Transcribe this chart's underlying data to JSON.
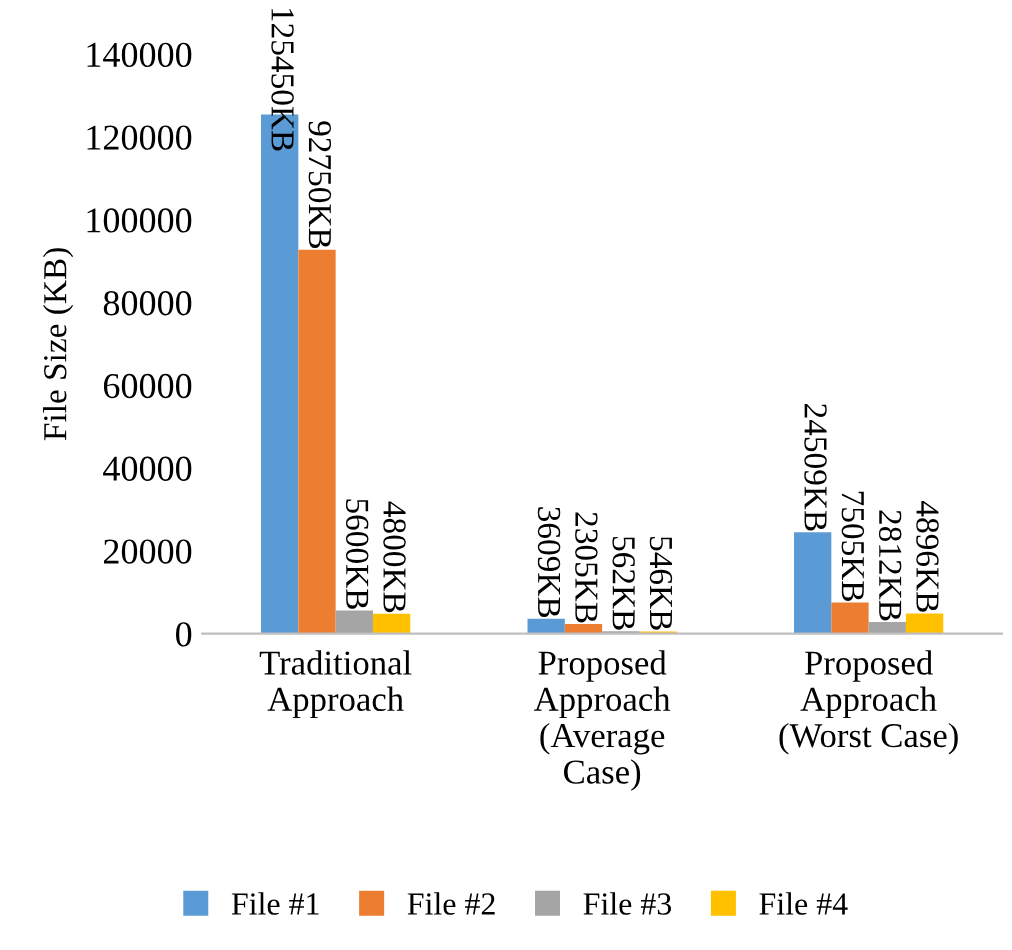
{
  "chart_data": {
    "type": "bar",
    "ylabel": "File Size (KB)",
    "categories": [
      "Traditional\nApproach",
      "Proposed\nApproach\n(Average\nCase)",
      "Proposed\nApproach\n(Worst Case)"
    ],
    "series": [
      {
        "name": "File #1",
        "color": "#5b9bd5",
        "values": [
          125450,
          3609,
          24509
        ],
        "value_labels": [
          "125450KB",
          "3609KB",
          "24509KB"
        ]
      },
      {
        "name": "File #2",
        "color": "#ed7d31",
        "values": [
          92750,
          2305,
          7505
        ],
        "value_labels": [
          "92750KB",
          "2305KB",
          "7505KB"
        ]
      },
      {
        "name": "File #3",
        "color": "#a5a5a5",
        "values": [
          5600,
          562,
          2812
        ],
        "value_labels": [
          "5600KB",
          "562KB",
          "2812KB"
        ]
      },
      {
        "name": "File #4",
        "color": "#ffc000",
        "values": [
          4800,
          546,
          4896
        ],
        "value_labels": [
          "4800KB",
          "546KB",
          "4896KB"
        ]
      }
    ],
    "ylim": [
      0,
      140000
    ],
    "yticks": [
      0,
      20000,
      40000,
      60000,
      80000,
      100000,
      120000,
      140000
    ],
    "grid": false,
    "legend": "bottom"
  }
}
